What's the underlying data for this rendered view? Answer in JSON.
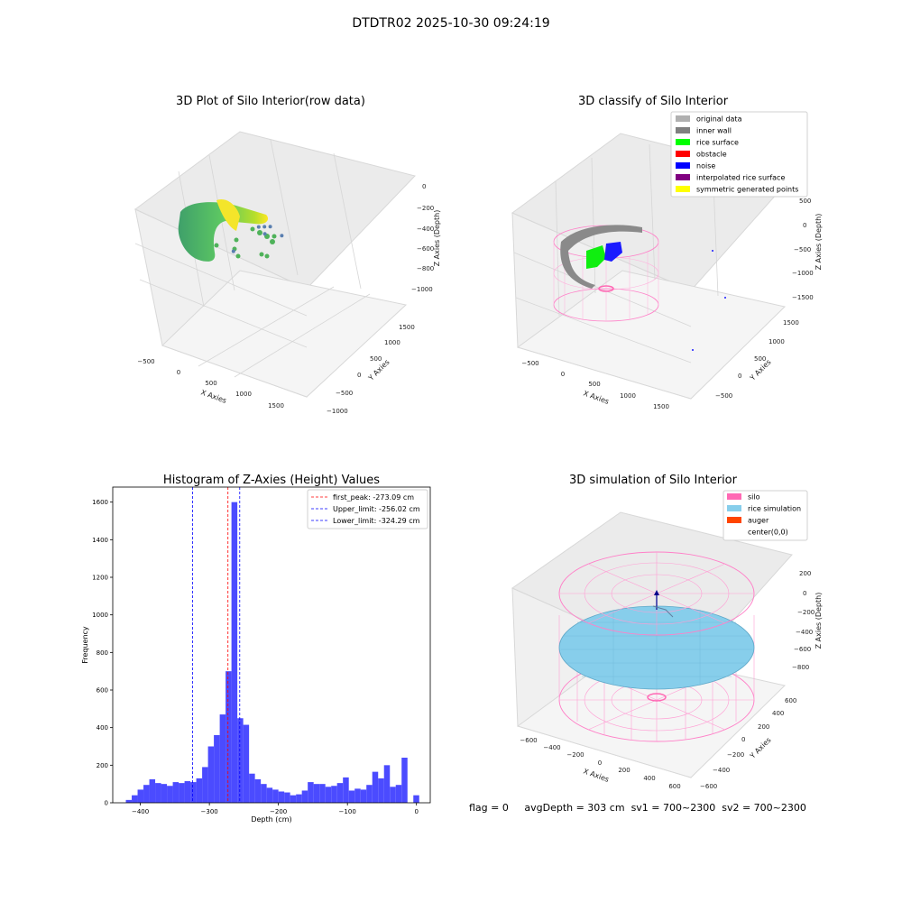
{
  "figure": {
    "title": "DTDTR02 2025-10-30 09:24:19",
    "footer": {
      "flag": "flag = 0",
      "avg_depth": "avgDepth = 303 cm",
      "sv1": "sv1 = 700~2300",
      "sv2": "sv2 = 700~2300"
    }
  },
  "colors": {
    "hist_bar": "#4b4bff",
    "peak_line": "#ff0000",
    "limit_line": "#0000ff",
    "silo_mesh": "#ff69b4",
    "rice_sim": "#87ceeb",
    "auger": "#ff4500"
  },
  "chart_data": [
    {
      "type": "scatter",
      "projection": "3d",
      "title": "3D Plot of Silo Interior(row data)",
      "xlabel": "X Axies",
      "ylabel": "Y Axies",
      "zlabel": "Z Axies (Depth)",
      "x_ticks": [
        "−500",
        "0",
        "500",
        "1000",
        "1500"
      ],
      "y_ticks": [
        "−1000",
        "−500",
        "0",
        "500",
        "1000",
        "1500"
      ],
      "z_ticks": [
        "0",
        "−200",
        "−400",
        "−600",
        "−800",
        "−1000"
      ],
      "colormap": "viridis",
      "outliers": [
        {
          "x": 900,
          "y": 300,
          "z": -700
        },
        {
          "x": 1050,
          "y": 250,
          "z": -690
        },
        {
          "x": 1200,
          "y": 350,
          "z": -650
        },
        {
          "x": 1100,
          "y": 200,
          "z": -800
        },
        {
          "x": 1300,
          "y": 100,
          "z": -900
        },
        {
          "x": 1400,
          "y": -500,
          "z": -1000
        }
      ]
    },
    {
      "type": "scatter",
      "projection": "3d",
      "title": "3D classify of Silo Interior",
      "xlabel": "X Axies",
      "ylabel": "Y Axies",
      "zlabel": "Z Axies (Depth)",
      "x_ticks": [
        "−500",
        "0",
        "500",
        "1000",
        "1500"
      ],
      "y_ticks": [
        "−500",
        "0",
        "500",
        "1000",
        "1500"
      ],
      "z_ticks": [
        "500",
        "0",
        "−500",
        "−1000",
        "−1500"
      ],
      "legend_position": "top-right",
      "legend": [
        {
          "label": "original data",
          "color": "#b0b0b0"
        },
        {
          "label": "inner wall",
          "color": "#808080"
        },
        {
          "label": "rice surface",
          "color": "#00ff00"
        },
        {
          "label": "obstacle",
          "color": "#ff0000"
        },
        {
          "label": "noise",
          "color": "#0000ff"
        },
        {
          "label": "interpolated rice surface",
          "color": "#800080"
        },
        {
          "label": "symmetric generated points",
          "color": "#ffff00"
        }
      ]
    },
    {
      "type": "bar",
      "title": "Histogram of Z-Axies (Height) Values",
      "xlabel": "Depth (cm)",
      "ylabel": "Frequency",
      "xlim": [
        -440,
        20
      ],
      "ylim": [
        0,
        1680
      ],
      "x_ticks": [
        -400,
        -300,
        -200,
        -100,
        0
      ],
      "y_ticks": [
        0,
        200,
        400,
        600,
        800,
        1000,
        1200,
        1400,
        1600
      ],
      "bin_width": 8.5,
      "bin_start": -421,
      "values": [
        15,
        40,
        70,
        95,
        125,
        105,
        100,
        90,
        110,
        105,
        115,
        110,
        130,
        190,
        300,
        360,
        470,
        700,
        1600,
        450,
        415,
        155,
        125,
        100,
        80,
        70,
        60,
        55,
        40,
        45,
        65,
        110,
        100,
        100,
        85,
        90,
        105,
        135,
        65,
        75,
        70,
        95,
        165,
        130,
        200,
        85,
        95,
        240,
        0,
        40
      ],
      "vlines": [
        {
          "name": "first_peak",
          "value": -273.09,
          "label": "first_peak: -273.09 cm",
          "color": "#ff0000"
        },
        {
          "name": "upper_limit",
          "value": -256.02,
          "label": "Upper_limit: -256.02 cm",
          "color": "#0000ff"
        },
        {
          "name": "lower_limit",
          "value": -324.29,
          "label": "Lower_limit: -324.29 cm",
          "color": "#0000ff"
        }
      ],
      "legend_position": "top-right"
    },
    {
      "type": "surface",
      "projection": "3d",
      "title": "3D simulation of Silo Interior",
      "xlabel": "X Axies",
      "ylabel": "Y Axies",
      "zlabel": "Z Axies (Depth)",
      "x_ticks": [
        "−600",
        "−400",
        "−200",
        "0",
        "200",
        "400",
        "600"
      ],
      "y_ticks": [
        "−600",
        "−400",
        "−200",
        "0",
        "200",
        "400",
        "600"
      ],
      "z_ticks": [
        "200",
        "0",
        "−200",
        "−400",
        "−600",
        "−800"
      ],
      "legend_position": "top-right",
      "legend": [
        {
          "label": "silo",
          "color": "#ff69b4"
        },
        {
          "label": "rice simulation",
          "color": "#87ceeb"
        },
        {
          "label": "auger",
          "color": "#ff4500"
        },
        {
          "label": "center(0,0)",
          "color": ""
        }
      ]
    }
  ]
}
